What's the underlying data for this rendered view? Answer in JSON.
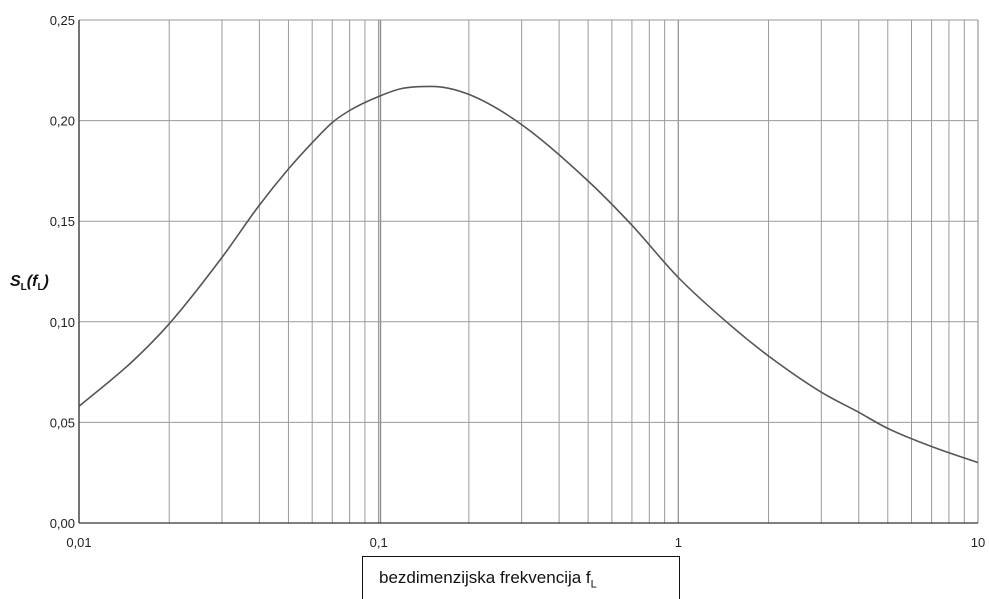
{
  "chart_data": {
    "type": "line",
    "xscale": "log",
    "xlim": [
      0.01,
      10
    ],
    "ylim": [
      0,
      0.25
    ],
    "grid": true,
    "x_ticks": [
      "0,01",
      "0,1",
      "1",
      "10"
    ],
    "y_ticks": [
      "0,00",
      "0,05",
      "0,10",
      "0,15",
      "0,20",
      "0,25"
    ],
    "ylabel_main": "S",
    "ylabel_sub1": "L",
    "ylabel_arg": "(f",
    "ylabel_sub2": "L",
    "ylabel_close": ")",
    "xlabel_main": "bezdimenzijska frekvencija f",
    "xlabel_sub": "L",
    "series": [
      {
        "x": [
          0.01,
          0.015,
          0.02,
          0.03,
          0.04,
          0.05,
          0.06,
          0.07,
          0.08,
          0.1,
          0.12,
          0.15,
          0.2,
          0.3,
          0.5,
          0.7,
          1,
          1.5,
          2,
          3,
          4,
          5,
          7,
          10
        ],
        "y": [
          0.058,
          0.08,
          0.099,
          0.132,
          0.158,
          0.176,
          0.189,
          0.199,
          0.205,
          0.212,
          0.216,
          0.217,
          0.213,
          0.198,
          0.17,
          0.148,
          0.122,
          0.098,
          0.083,
          0.065,
          0.055,
          0.047,
          0.038,
          0.03
        ]
      }
    ],
    "colors": {
      "line": "#555555",
      "grid": "#9a9a9a",
      "axis": "#333333"
    }
  }
}
